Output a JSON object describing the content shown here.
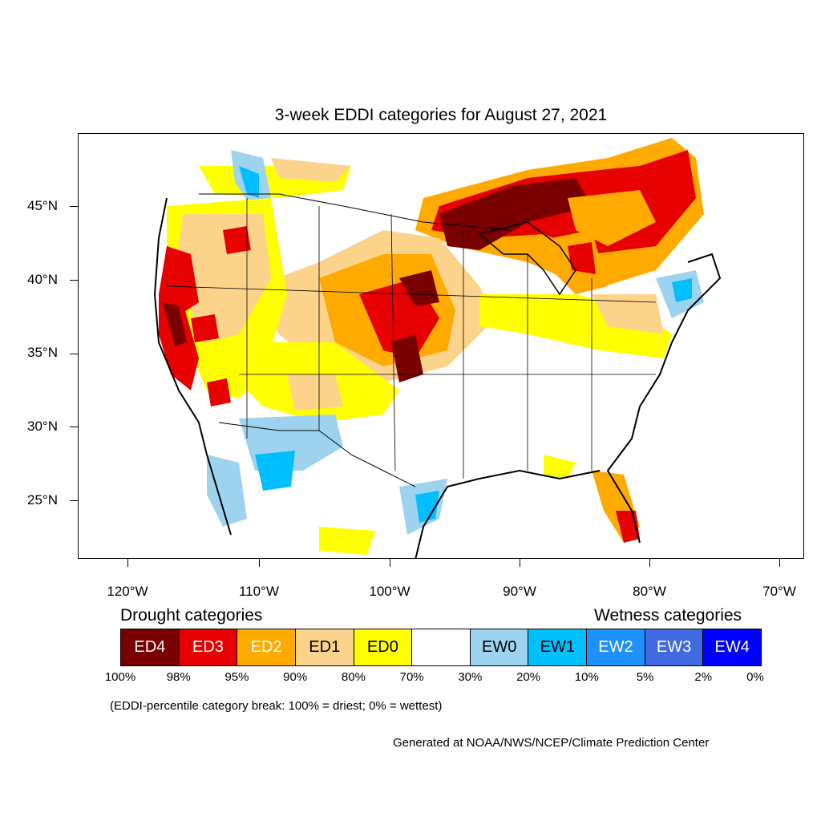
{
  "title": "3-week EDDI categories for August 27, 2021",
  "axes": {
    "lat_labels": [
      "45°N",
      "40°N",
      "35°N",
      "30°N",
      "25°N"
    ],
    "lon_labels": [
      "120°W",
      "110°W",
      "100°W",
      "90°W",
      "80°W",
      "70°W"
    ]
  },
  "legend": {
    "drought_heading": "Drought categories",
    "wetness_heading": "Wetness categories",
    "boxes": [
      {
        "label": "ED4",
        "color": "#7a0000",
        "text_color": "#ffffff"
      },
      {
        "label": "ED3",
        "color": "#e60000",
        "text_color": "#ffffff"
      },
      {
        "label": "ED2",
        "color": "#ffaa00",
        "text_color": "#ffffff"
      },
      {
        "label": "ED1",
        "color": "#fcd38a",
        "text_color": "#000000"
      },
      {
        "label": "ED0",
        "color": "#ffff00",
        "text_color": "#000000"
      },
      {
        "label": "",
        "color": "#ffffff",
        "text_color": "#000000"
      },
      {
        "label": "EW0",
        "color": "#9ed3ef",
        "text_color": "#000000"
      },
      {
        "label": "EW1",
        "color": "#00bfff",
        "text_color": "#000000"
      },
      {
        "label": "EW2",
        "color": "#1e90ff",
        "text_color": "#ffffff"
      },
      {
        "label": "EW3",
        "color": "#4169e1",
        "text_color": "#ffffff"
      },
      {
        "label": "EW4",
        "color": "#0000ff",
        "text_color": "#ffffff"
      }
    ],
    "percent_breaks": [
      "100%",
      "98%",
      "95%",
      "90%",
      "80%",
      "70%",
      "30%",
      "20%",
      "10%",
      "5%",
      "2%",
      "0%"
    ]
  },
  "note": "(EDDI-percentile category break: 100% = driest; 0% = wettest)",
  "credit": "Generated at NOAA/NWS/NCEP/Climate Prediction Center"
}
